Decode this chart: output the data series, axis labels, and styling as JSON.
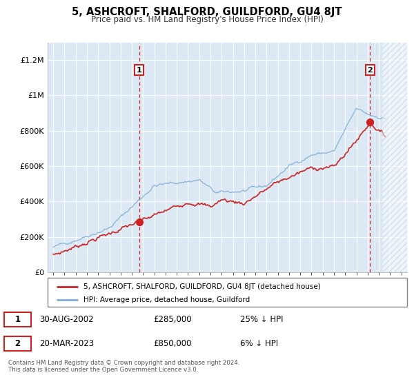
{
  "title": "5, ASHCROFT, SHALFORD, GUILDFORD, GU4 8JT",
  "subtitle": "Price paid vs. HM Land Registry's House Price Index (HPI)",
  "background_color": "#ffffff",
  "plot_bg_color": "#dce9f5",
  "grid_color": "#ffffff",
  "hpi_color": "#7aadd4",
  "price_color": "#cc2222",
  "marker1_year": 2002.66,
  "marker1_price": 285000,
  "marker2_year": 2023.22,
  "marker2_price": 850000,
  "xlim": [
    1994.5,
    2026.5
  ],
  "ylim": [
    0,
    1300000
  ],
  "yticks": [
    0,
    200000,
    400000,
    600000,
    800000,
    1000000,
    1200000
  ],
  "ytick_labels": [
    "£0",
    "£200K",
    "£400K",
    "£600K",
    "£800K",
    "£1M",
    "£1.2M"
  ],
  "xticks": [
    1995,
    1996,
    1997,
    1998,
    1999,
    2000,
    2001,
    2002,
    2003,
    2004,
    2005,
    2006,
    2007,
    2008,
    2009,
    2010,
    2011,
    2012,
    2013,
    2014,
    2015,
    2016,
    2017,
    2018,
    2019,
    2020,
    2021,
    2022,
    2023,
    2024,
    2025,
    2026
  ],
  "legend_label_price": "5, ASHCROFT, SHALFORD, GUILDFORD, GU4 8JT (detached house)",
  "legend_label_hpi": "HPI: Average price, detached house, Guildford",
  "annotation1_label": "1",
  "annotation1_date": "30-AUG-2002",
  "annotation1_price_str": "£285,000",
  "annotation1_pct": "25% ↓ HPI",
  "annotation2_label": "2",
  "annotation2_date": "20-MAR-2023",
  "annotation2_price_str": "£850,000",
  "annotation2_pct": "6% ↓ HPI",
  "footer": "Contains HM Land Registry data © Crown copyright and database right 2024.\nThis data is licensed under the Open Government Licence v3.0."
}
